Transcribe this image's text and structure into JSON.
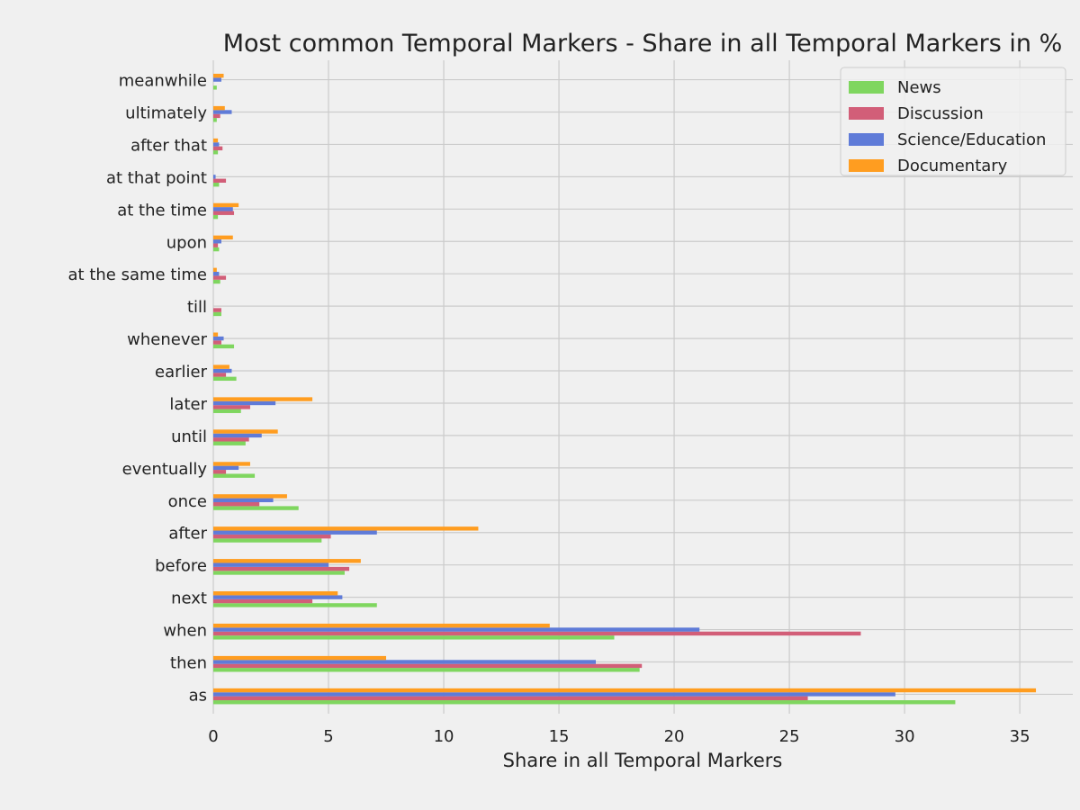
{
  "chart_data": {
    "type": "bar",
    "orientation": "horizontal",
    "title": "Most common Temporal Markers - Share in all Temporal Markers in %",
    "xlabel": "Share in all Temporal Markers",
    "ylabel": "",
    "xlim": [
      0,
      37.3
    ],
    "xticks": [
      0,
      5,
      10,
      15,
      20,
      25,
      30,
      35
    ],
    "grid": true,
    "legend_position": "top-right",
    "categories": [
      "as",
      "then",
      "when",
      "next",
      "before",
      "after",
      "once",
      "eventually",
      "until",
      "later",
      "earlier",
      "whenever",
      "till",
      "at the same time",
      "upon",
      "at the time",
      "at that point",
      "after that",
      "ultimately",
      "meanwhile"
    ],
    "series": [
      {
        "name": "News",
        "color": "#7fd65f",
        "values": [
          32.2,
          18.5,
          17.4,
          7.1,
          5.7,
          4.7,
          3.7,
          1.8,
          1.4,
          1.2,
          1.0,
          0.9,
          0.35,
          0.3,
          0.25,
          0.2,
          0.25,
          0.2,
          0.15,
          0.15
        ]
      },
      {
        "name": "Discussion",
        "color": "#d25e78",
        "values": [
          25.8,
          18.6,
          28.1,
          4.3,
          5.9,
          5.1,
          2.0,
          0.55,
          1.55,
          1.6,
          0.55,
          0.35,
          0.35,
          0.55,
          0.2,
          0.9,
          0.55,
          0.4,
          0.3,
          0.0
        ]
      },
      {
        "name": "Science/Education",
        "color": "#5f7bd8",
        "values": [
          29.6,
          16.6,
          21.1,
          5.6,
          5.0,
          7.1,
          2.6,
          1.1,
          2.1,
          2.7,
          0.8,
          0.45,
          0.0,
          0.25,
          0.35,
          0.85,
          0.1,
          0.25,
          0.8,
          0.35
        ]
      },
      {
        "name": "Documentary",
        "color": "#ff9d20",
        "values": [
          35.7,
          7.5,
          14.6,
          5.4,
          6.4,
          11.5,
          3.2,
          1.6,
          2.8,
          4.3,
          0.7,
          0.2,
          0.0,
          0.15,
          0.85,
          1.1,
          0.0,
          0.2,
          0.5,
          0.45
        ]
      }
    ]
  }
}
